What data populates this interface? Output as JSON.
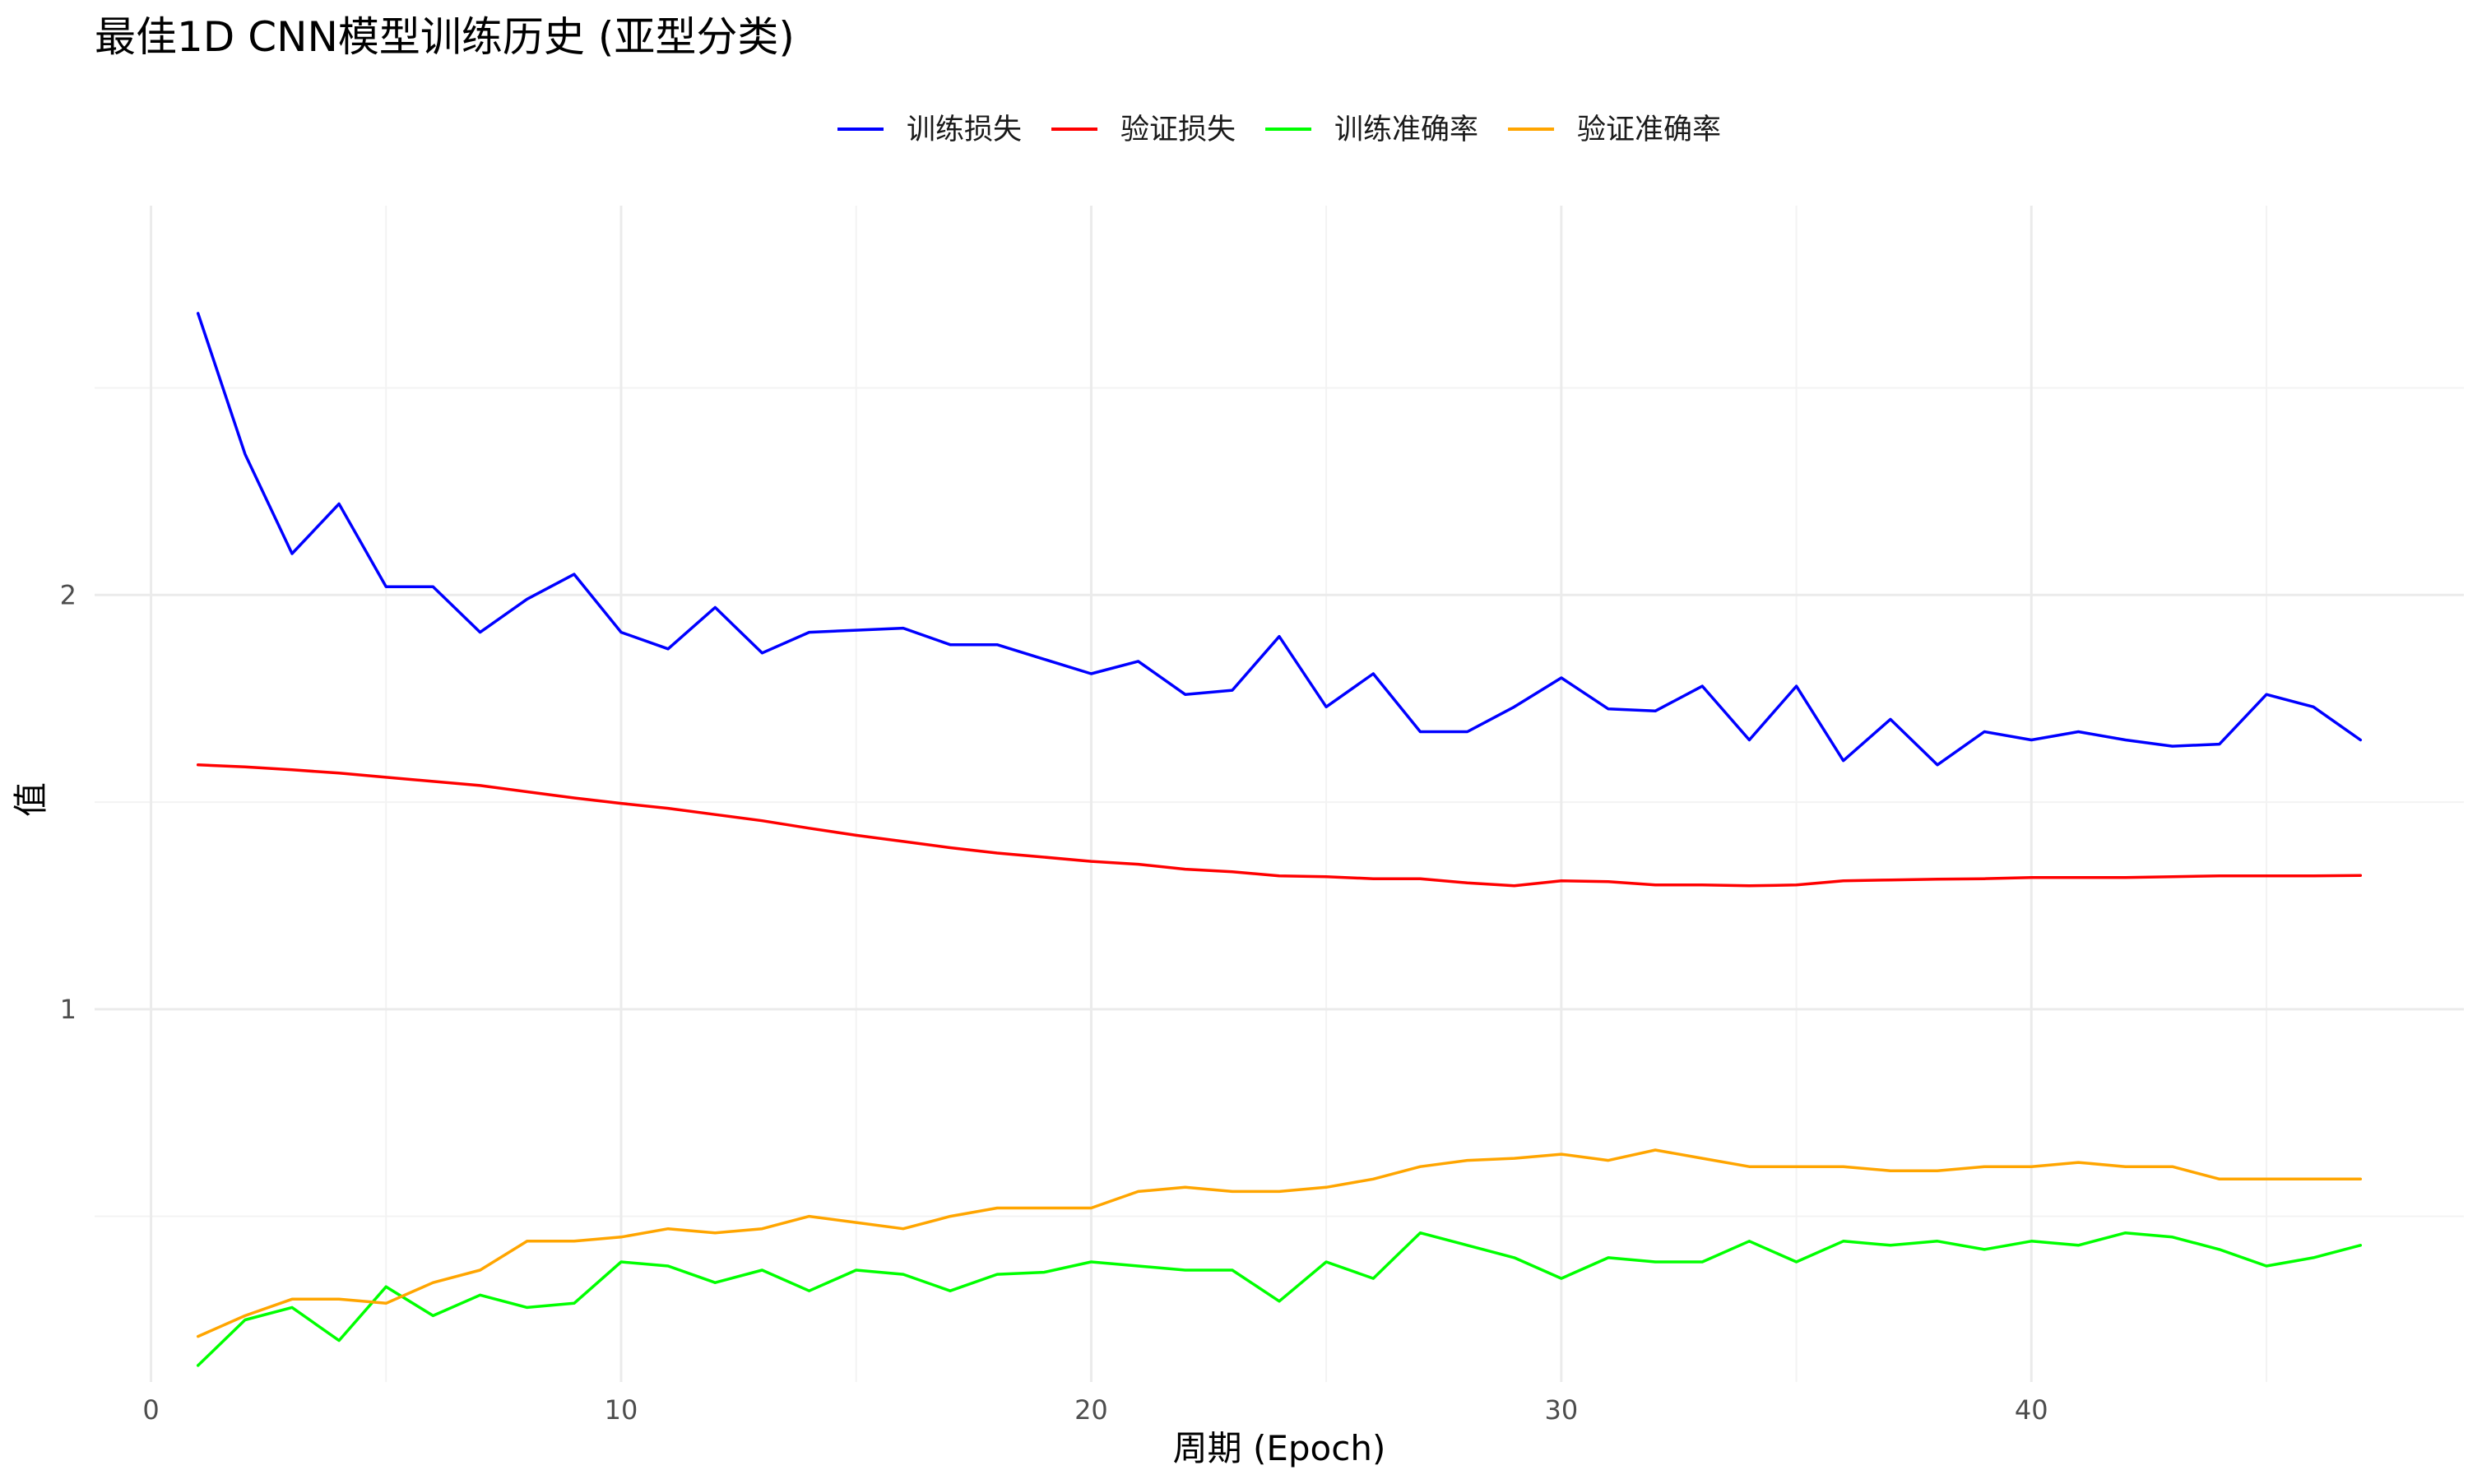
{
  "chart_data": {
    "type": "line",
    "title": "最佳1D CNN模型训练历史 (亚型分类)",
    "xlabel": "周期 (Epoch)",
    "ylabel": "值",
    "xlim": [
      -1.2,
      49.2
    ],
    "ylim": [
      0.1,
      2.94
    ],
    "x_ticks": [
      0,
      10,
      20,
      30,
      40
    ],
    "x_minor_ticks": [
      5,
      15,
      25,
      35,
      45
    ],
    "y_ticks": [
      1,
      2
    ],
    "y_minor_ticks": [
      0.5,
      1.5,
      2.5
    ],
    "grid": true,
    "legend_position": "top",
    "x": [
      1,
      2,
      3,
      4,
      5,
      6,
      7,
      8,
      9,
      10,
      11,
      12,
      13,
      14,
      15,
      16,
      17,
      18,
      19,
      20,
      21,
      22,
      23,
      24,
      25,
      26,
      27,
      28,
      29,
      30,
      31,
      32,
      33,
      34,
      35,
      36,
      37,
      38,
      39,
      40,
      41,
      42,
      43,
      44,
      45,
      46,
      47
    ],
    "series": [
      {
        "name": "训练损失",
        "color": "#0000FF",
        "values": [
          2.68,
          2.34,
          2.1,
          2.22,
          2.02,
          2.02,
          1.91,
          1.99,
          2.05,
          1.91,
          1.87,
          1.97,
          1.86,
          1.91,
          1.915,
          1.92,
          1.88,
          1.88,
          1.845,
          1.81,
          1.84,
          1.76,
          1.77,
          1.9,
          1.73,
          1.81,
          1.67,
          1.67,
          1.73,
          1.8,
          1.725,
          1.72,
          1.78,
          1.65,
          1.78,
          1.6,
          1.7,
          1.59,
          1.67,
          1.65,
          1.67,
          1.65,
          1.635,
          1.64,
          1.76,
          1.73,
          1.65
        ]
      },
      {
        "name": "验证损失",
        "color": "#FF0000",
        "values": [
          1.59,
          1.585,
          1.578,
          1.57,
          1.56,
          1.55,
          1.54,
          1.525,
          1.51,
          1.497,
          1.485,
          1.47,
          1.455,
          1.437,
          1.42,
          1.405,
          1.39,
          1.377,
          1.367,
          1.357,
          1.35,
          1.338,
          1.332,
          1.322,
          1.32,
          1.315,
          1.315,
          1.305,
          1.298,
          1.31,
          1.308,
          1.3,
          1.3,
          1.298,
          1.3,
          1.31,
          1.312,
          1.314,
          1.315,
          1.318,
          1.318,
          1.318,
          1.32,
          1.322,
          1.322,
          1.322,
          1.323
        ]
      },
      {
        "name": "训练准确率",
        "color": "#00FF00",
        "values": [
          0.14,
          0.25,
          0.28,
          0.2,
          0.33,
          0.26,
          0.31,
          0.28,
          0.29,
          0.39,
          0.38,
          0.34,
          0.37,
          0.32,
          0.37,
          0.36,
          0.32,
          0.36,
          0.365,
          0.39,
          0.38,
          0.37,
          0.37,
          0.295,
          0.39,
          0.35,
          0.46,
          0.43,
          0.4,
          0.35,
          0.4,
          0.39,
          0.39,
          0.44,
          0.39,
          0.44,
          0.43,
          0.44,
          0.42,
          0.44,
          0.43,
          0.46,
          0.45,
          0.42,
          0.38,
          0.4,
          0.43
        ]
      },
      {
        "name": "验证准确率",
        "color": "#FFA500",
        "values": [
          0.21,
          0.26,
          0.3,
          0.3,
          0.29,
          0.34,
          0.37,
          0.44,
          0.44,
          0.45,
          0.47,
          0.46,
          0.47,
          0.5,
          0.485,
          0.47,
          0.5,
          0.52,
          0.52,
          0.52,
          0.56,
          0.57,
          0.56,
          0.56,
          0.57,
          0.59,
          0.62,
          0.635,
          0.64,
          0.65,
          0.635,
          0.66,
          0.64,
          0.62,
          0.62,
          0.62,
          0.61,
          0.61,
          0.62,
          0.62,
          0.63,
          0.62,
          0.62,
          0.59,
          0.59,
          0.59,
          0.59
        ]
      }
    ]
  }
}
